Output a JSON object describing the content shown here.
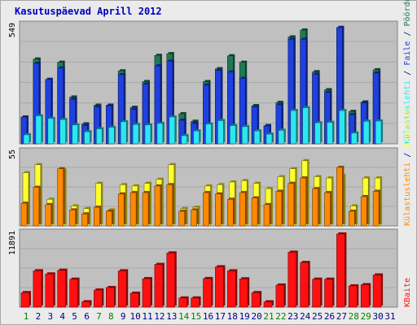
{
  "chart_data": {
    "type": "bar",
    "title": "Kasutuspäevad Aprill 2012",
    "categories": [
      "1",
      "2",
      "3",
      "4",
      "5",
      "6",
      "7",
      "8",
      "9",
      "10",
      "11",
      "12",
      "13",
      "14",
      "15",
      "16",
      "17",
      "18",
      "19",
      "20",
      "21",
      "22",
      "23",
      "24",
      "25",
      "26",
      "27",
      "28",
      "29",
      "30",
      "31"
    ],
    "weekend_days": [
      "1",
      "7",
      "8",
      "14",
      "15",
      "21",
      "22",
      "28",
      "29"
    ],
    "panels": [
      {
        "id": "visits",
        "ymax_label": "549",
        "ylim": [
          0,
          549
        ],
        "series": [
          {
            "name": "Pöördumisi",
            "color": "#1f7a55",
            "values": [
              125,
              395,
              300,
              380,
              218,
              93,
              180,
              180,
              340,
              170,
              290,
              412,
              420,
              140,
              105,
              290,
              350,
              410,
              380,
              178,
              85,
              193,
              498,
              530,
              336,
              252,
              542,
              151,
              195,
              345,
              0
            ]
          },
          {
            "name": "Faile",
            "color": "#1e40e0",
            "values": [
              125,
              375,
              300,
              353,
              208,
              85,
              172,
              177,
              322,
              160,
              278,
              363,
              385,
              110,
              95,
              274,
              342,
              335,
              305,
              172,
              83,
              182,
              487,
              487,
              324,
              240,
              542,
              136,
              191,
              330,
              0
            ]
          },
          {
            "name": "Külastuslehti",
            "color": "#2ee6f2",
            "values": [
              42,
              130,
              118,
              113,
              88,
              56,
              70,
              77,
              103,
              90,
              88,
              95,
              125,
              38,
              60,
              92,
              108,
              85,
              80,
              60,
              45,
              63,
              155,
              168,
              98,
              100,
              155,
              50,
              105,
              106,
              0
            ]
          }
        ]
      },
      {
        "id": "pages",
        "ymax_label": "55",
        "ylim": [
          0,
          55
        ],
        "series": [
          {
            "name": "Külastuslehti",
            "color": "#ffff2e",
            "values": [
              40,
              46,
              20,
              42,
              15,
              13,
              32,
              12,
              31,
              30,
              32,
              35,
              46,
              13,
              14,
              30,
              31,
              33,
              34,
              32,
              28,
              37,
              43,
              49,
              37,
              36,
              38,
              15,
              36,
              36,
              0
            ]
          },
          {
            "name": "Arvuteid",
            "color": "#ff8a00",
            "values": [
              17,
              29,
              16,
              43,
              12,
              9,
              14,
              11,
              24,
              25,
              25,
              30,
              31,
              11,
              12,
              25,
              24,
              20,
              25,
              21,
              16,
              26,
              32,
              36,
              28,
              25,
              44,
              11,
              22,
              26,
              0
            ]
          }
        ]
      },
      {
        "id": "kbytes",
        "ymax_label": "11891",
        "ylim": [
          0,
          11891
        ],
        "series": [
          {
            "name": "KBaite",
            "color": "#ff1010",
            "values": [
              2356,
              5905,
              5390,
              5990,
              4538,
              866,
              2773,
              3182,
              5893,
              2260,
              4627,
              6944,
              8810,
              1480,
              1480,
              4643,
              6555,
              5892,
              4595,
              2356,
              861,
              3586,
              8932,
              7262,
              4538,
              4536,
              11891,
              3450,
              3647,
              5220,
              0
            ]
          }
        ]
      }
    ],
    "legend_right": {
      "top": [
        "Pöördumisi",
        "Faile",
        "Külastuslehti"
      ],
      "middle": [
        "Arvuteid",
        "Külastuslehti"
      ],
      "bottom": [
        "KBaite"
      ],
      "separator": " / "
    }
  },
  "colors": {
    "panel_bg": "#c0c0c0",
    "frame_bg": "#ebebeb",
    "gridline": "#a9a9a9",
    "weekday_label": "#000080",
    "weekend_label": "#008000",
    "title": "#0000c0"
  }
}
